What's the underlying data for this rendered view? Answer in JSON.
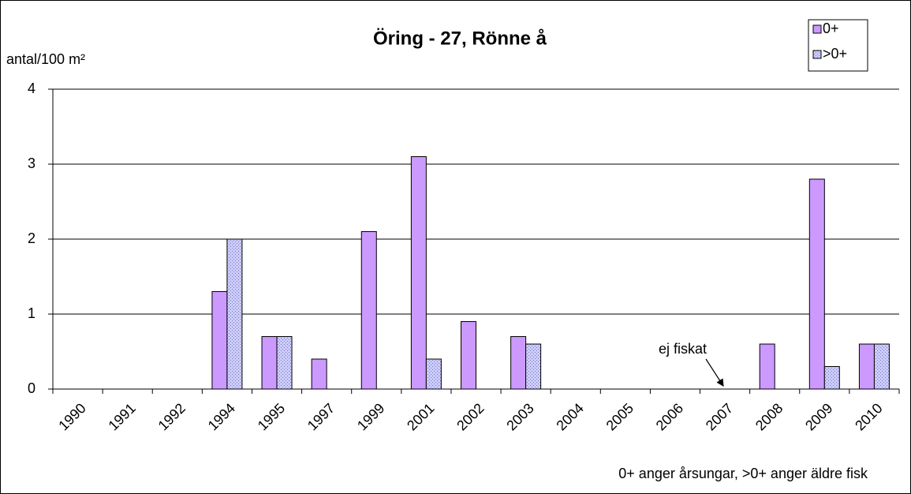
{
  "chart_data": {
    "type": "bar",
    "title": "Öring - 27, Rönne å",
    "y_label": "antal/100 m²",
    "categories": [
      "1990",
      "1991",
      "1992",
      "1994",
      "1995",
      "1997",
      "1999",
      "2001",
      "2002",
      "2003",
      "2004",
      "2005",
      "2006",
      "2007",
      "2008",
      "2009",
      "2010"
    ],
    "series": [
      {
        "name": "0+",
        "color": "#cc99ff",
        "values": [
          0,
          0,
          0,
          1.3,
          0.7,
          0.4,
          2.1,
          3.1,
          0.9,
          0.7,
          0,
          0,
          0,
          null,
          0.6,
          2.8,
          0.6
        ]
      },
      {
        "name": ">0+",
        "color": "#ccccff",
        "values": [
          0,
          0,
          0,
          2.0,
          0.7,
          0,
          0,
          0.4,
          0,
          0.6,
          0,
          0,
          0,
          null,
          0,
          0.3,
          0.6
        ]
      }
    ],
    "ylim": [
      0,
      4
    ],
    "yticks": [
      0,
      1,
      2,
      3,
      4
    ],
    "grid": true,
    "legend": "top-right",
    "annotations": [
      "ej fiskat",
      "0+ anger årsungar, >0+ anger äldre fisk"
    ]
  }
}
